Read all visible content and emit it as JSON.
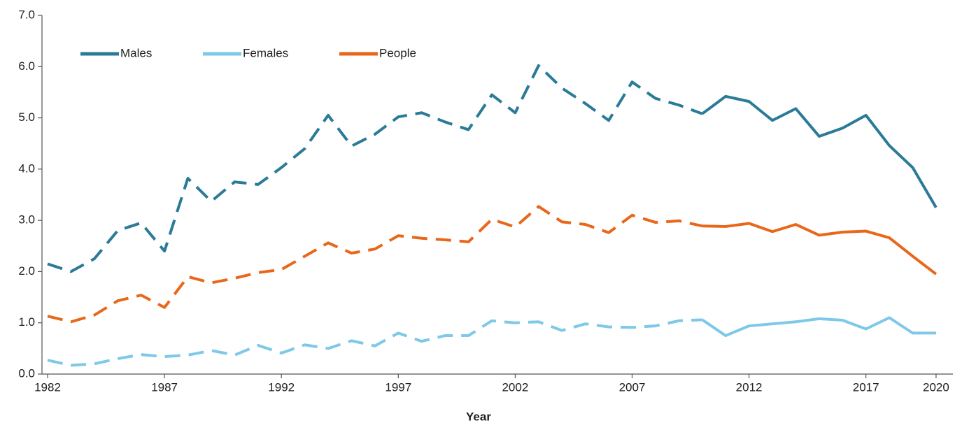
{
  "chart_data": {
    "type": "line",
    "x_label": "Year",
    "x": [
      1982,
      1983,
      1984,
      1985,
      1986,
      1987,
      1988,
      1989,
      1990,
      1991,
      1992,
      1993,
      1994,
      1995,
      1996,
      1997,
      1998,
      1999,
      2000,
      2001,
      2002,
      2003,
      2004,
      2005,
      2006,
      2007,
      2008,
      2009,
      2010,
      2011,
      2012,
      2013,
      2014,
      2015,
      2016,
      2017,
      2018,
      2019,
      2020
    ],
    "series": [
      {
        "name": "Males",
        "color": "#2b7b98",
        "values": [
          2.15,
          2.0,
          2.25,
          2.8,
          2.95,
          2.4,
          3.82,
          3.37,
          3.75,
          3.7,
          4.03,
          4.4,
          5.05,
          4.45,
          4.68,
          5.02,
          5.1,
          4.92,
          4.77,
          5.45,
          5.1,
          6.02,
          5.58,
          5.28,
          4.95,
          5.7,
          5.38,
          5.25,
          5.08,
          5.42,
          5.32,
          4.95,
          5.18,
          4.64,
          4.8,
          5.05,
          4.46,
          4.03,
          3.25
        ]
      },
      {
        "name": "Females",
        "color": "#7ec8e8",
        "values": [
          0.27,
          0.17,
          0.2,
          0.3,
          0.38,
          0.34,
          0.37,
          0.46,
          0.37,
          0.56,
          0.41,
          0.57,
          0.5,
          0.65,
          0.55,
          0.8,
          0.64,
          0.75,
          0.75,
          1.04,
          1.0,
          1.02,
          0.85,
          0.98,
          0.92,
          0.91,
          0.94,
          1.04,
          1.06,
          0.75,
          0.94,
          0.98,
          1.02,
          1.08,
          1.05,
          0.88,
          1.1,
          0.8,
          0.8
        ]
      },
      {
        "name": "People",
        "color": "#e8671a",
        "values": [
          1.13,
          1.02,
          1.15,
          1.43,
          1.54,
          1.3,
          1.9,
          1.78,
          1.87,
          1.98,
          2.04,
          2.3,
          2.56,
          2.36,
          2.44,
          2.7,
          2.65,
          2.62,
          2.58,
          3.02,
          2.87,
          3.27,
          2.97,
          2.92,
          2.76,
          3.1,
          2.96,
          2.99,
          2.89,
          2.88,
          2.94,
          2.78,
          2.92,
          2.71,
          2.77,
          2.79,
          2.66,
          2.3,
          1.95
        ]
      }
    ],
    "dashed_through": 2010,
    "xlim": [
      1981.76,
      2020.72
    ],
    "xticks": [
      1982,
      1987,
      1992,
      1997,
      2002,
      2007,
      2012,
      2017,
      2020
    ],
    "ylim": [
      0,
      7
    ],
    "yticks": [
      {
        "value": 0,
        "label": "0.0"
      },
      {
        "value": 1,
        "label": "1.0"
      },
      {
        "value": 2,
        "label": "2.0"
      },
      {
        "value": 3,
        "label": "3.0"
      },
      {
        "value": 4,
        "label": "4.0"
      },
      {
        "value": 5,
        "label": "5.0"
      },
      {
        "value": 6,
        "label": "6.0"
      },
      {
        "value": 7,
        "label": "7.0"
      }
    ],
    "legend": "top-left",
    "grid": false
  }
}
